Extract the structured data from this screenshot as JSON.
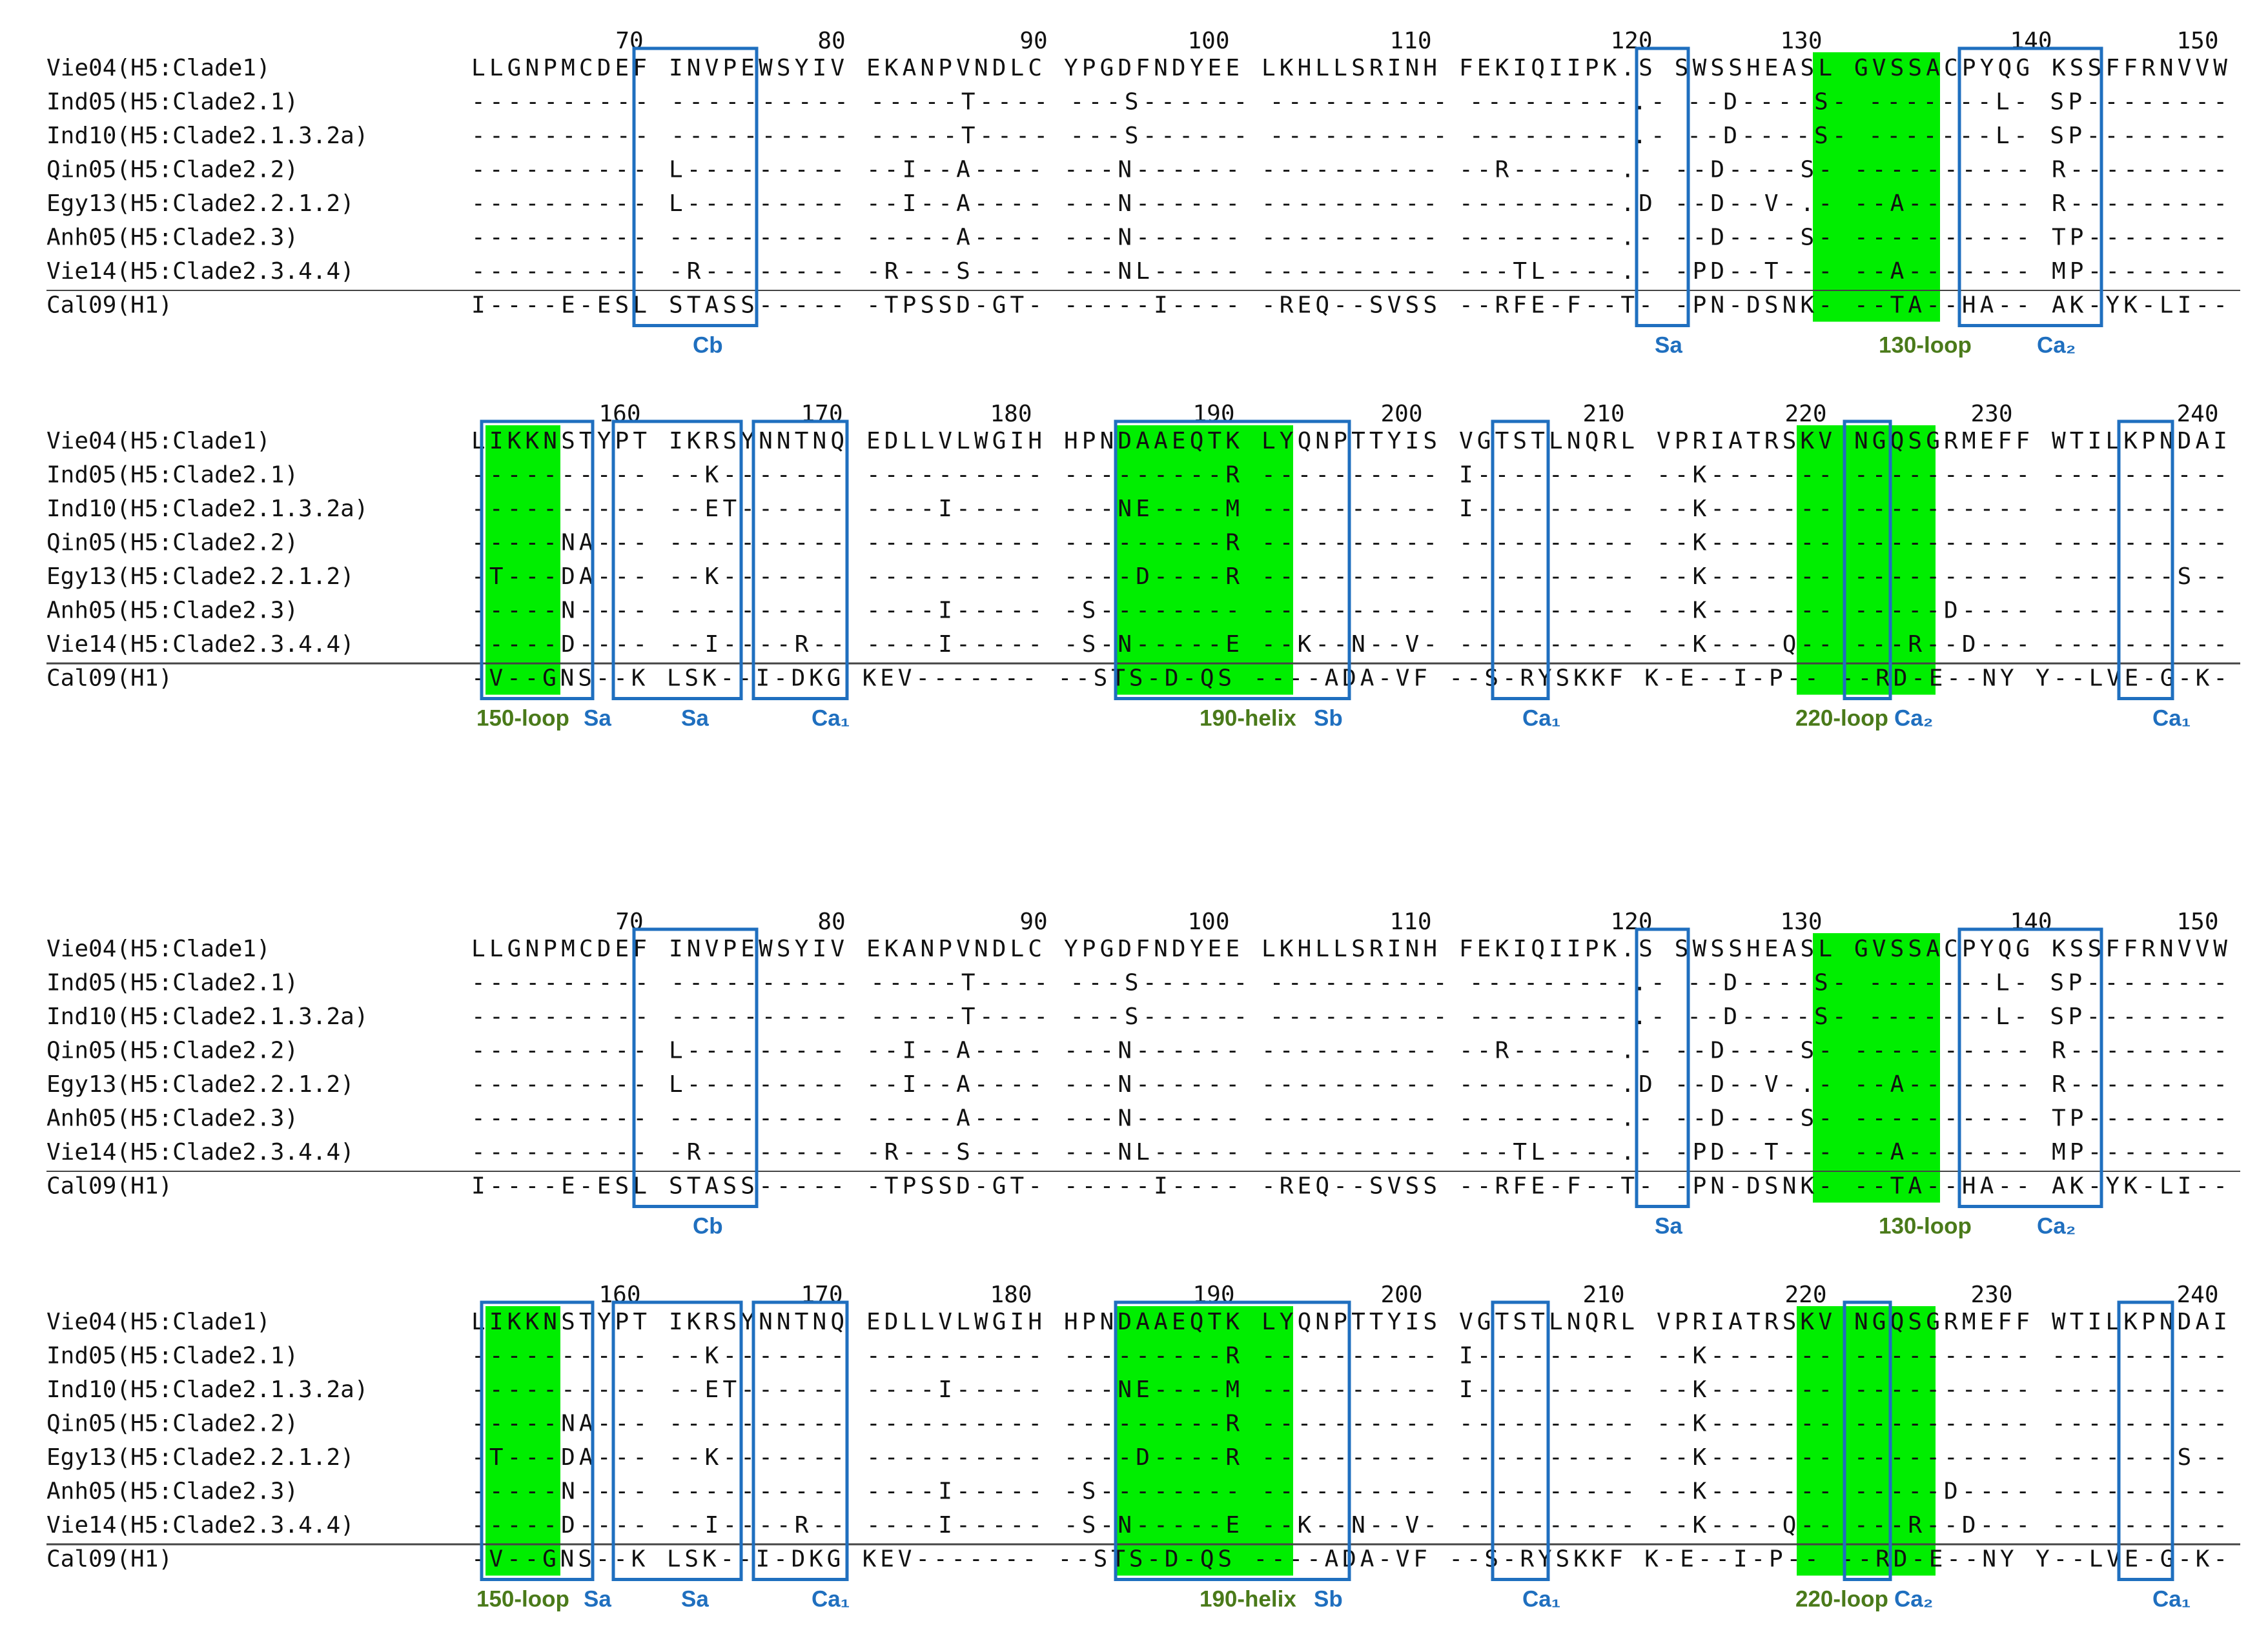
{
  "colors": {
    "highlight": "#00ee00",
    "box": "#1f6fbf",
    "site_label": "#1f6fbf",
    "loop_label": "#4a7a1a",
    "text": "#111111"
  },
  "panels": [
    {
      "ticks": [
        "70",
        "80",
        "90",
        "100",
        "110",
        "120",
        "130",
        "140",
        "150"
      ],
      "rows": [
        {
          "name": "Vie04(H5:Clade1)",
          "seq": "LLGNPMCDEF INVPEWSYIV EKANPVNDLC YPGDFNDYEE LKHLLSRINH FEKIQIIPK.S SWSSHEASL GVSSACPYQG KSSFFRNVVW"
        },
        {
          "name": "Ind05(H5:Clade2.1)",
          "seq": "---------- ---------- -----T---- ---S------ ---------- ---------.- --D----S- -------L- SP--------"
        },
        {
          "name": "Ind10(H5:Clade2.1.3.2a)",
          "seq": "---------- ---------- -----T---- ---S------ ---------- ---------.- --D----S- -------L- SP--------"
        },
        {
          "name": "Qin05(H5:Clade2.2)",
          "seq": "---------- L--------- --I--A---- ---N------ ---------- --R------.- --D----S- ---------- R---------"
        },
        {
          "name": "Egy13(H5:Clade2.2.1.2)",
          "seq": "---------- L--------- --I--A---- ---N------ ---------- ---------.D --D--V-.- --A------- R---------"
        },
        {
          "name": "Anh05(H5:Clade2.3)",
          "seq": "---------- ---------- -----A---- ---N------ ---------- ---------.- --D----S- ---------- TP--------"
        },
        {
          "name": "Vie14(H5:Clade2.3.4.4)",
          "seq": "---------- -R-------- -R---S---- ---NL----- ---------- ---TL----.- -PD--T--- --A------- MP--------"
        },
        {
          "name": "Cal09(H1)",
          "seq": "I----E-ESL STASS----- -TPSSD-GT- -----I---- -REQ--SVSS --RFE-F--T- -PN-DSNK- --TA--HA-- AK-YK-LI--"
        }
      ],
      "labels": [
        "Cb",
        "Sa",
        "130-loop",
        "Ca₂"
      ]
    },
    {
      "ticks": [
        "160",
        "170",
        "180",
        "190",
        "200",
        "210",
        "220",
        "230",
        "240"
      ],
      "rows": [
        {
          "name": "Vie04(H5:Clade1)",
          "seq": "LIKKNSTYPT IKRSYNNTNQ EDLLVLWGIH HPNDAAEQTK LYQNPTTYIS VGTSTLNQRL VPRIATRSKV NGQSGRMEFF WTILKPNDAI"
        },
        {
          "name": "Ind05(H5:Clade2.1)",
          "seq": "---------- --K------- ---------- ---------R ---------- I--------- --K------- ---------- ----------"
        },
        {
          "name": "Ind10(H5:Clade2.1.3.2a)",
          "seq": "---------- --ET------ ----I----- ---NE----M ---------- I--------- --K------- ---------- ----------"
        },
        {
          "name": "Qin05(H5:Clade2.2)",
          "seq": "-----NA--- ---------- ---------- ---------R ---------- ---------- --K------- ---------- ----------"
        },
        {
          "name": "Egy13(H5:Clade2.2.1.2)",
          "seq": "-T---DA--- --K------- ---------- ----D----R ---------- ---------- --K------- ---------- -------S--"
        },
        {
          "name": "Anh05(H5:Clade2.3)",
          "seq": "-----N---- ---------- ----I----- -S-------- ---------- ---------- --K------- -----D---- ----------"
        },
        {
          "name": "Vie14(H5:Clade2.3.4.4)",
          "seq": "-----D---- --I----R-- ----I----- -S-N-----E --K--N--V- ---------- --K----Q-- ---R--D--- ----------"
        },
        {
          "name": "Cal09(H1)",
          "seq": "-V--GNS--K LSK--I-DKG KEV------- --STS-D-QS ----ADA-VF --S-RYSKKF K-E--I-P-- --RD-E--NY Y--LVE-G-K-"
        }
      ],
      "labels": [
        "150-loop",
        "Sa",
        "Sa",
        "Ca₁",
        "190-helix",
        "Sb",
        "Ca₁",
        "220-loop",
        "Ca₂",
        "Ca₁"
      ]
    },
    {
      "ticks": [
        "70",
        "80",
        "90",
        "100",
        "110",
        "120",
        "130",
        "140",
        "150"
      ],
      "rows": [
        {
          "name": "Vie04(H5:Clade1)",
          "seq": "LLGNPMCDEF INVPEWSYIV EKANPVNDLC YPGDFNDYEE LKHLLSRINH FEKIQIIPK.S SWSSHEASL GVSSACPYQG KSSFFRNVVW"
        },
        {
          "name": "Ind05(H5:Clade2.1)",
          "seq": "---------- ---------- -----T---- ---S------ ---------- ---------.- --D----S- -------L- SP--------"
        },
        {
          "name": "Ind10(H5:Clade2.1.3.2a)",
          "seq": "---------- ---------- -----T---- ---S------ ---------- ---------.- --D----S- -------L- SP--------"
        },
        {
          "name": "Qin05(H5:Clade2.2)",
          "seq": "---------- L--------- --I--A---- ---N------ ---------- --R------.- --D----S- ---------- R---------"
        },
        {
          "name": "Egy13(H5:Clade2.2.1.2)",
          "seq": "---------- L--------- --I--A---- ---N------ ---------- ---------.D --D--V-.- --A------- R---------"
        },
        {
          "name": "Anh05(H5:Clade2.3)",
          "seq": "---------- ---------- -----A---- ---N------ ---------- ---------.- --D----S- ---------- TP--------"
        },
        {
          "name": "Vie14(H5:Clade2.3.4.4)",
          "seq": "---------- -R-------- -R---S---- ---NL----- ---------- ---TL----.- -PD--T--- --A------- MP--------"
        },
        {
          "name": "Cal09(H1)",
          "seq": "I----E-ESL STASS----- -TPSSD-GT- -----I---- -REQ--SVSS --RFE-F--T- -PN-DSNK- --TA--HA-- AK-YK-LI--"
        }
      ],
      "labels": [
        "Cb",
        "Sa",
        "130-loop",
        "Ca₂"
      ]
    },
    {
      "ticks": [
        "160",
        "170",
        "180",
        "190",
        "200",
        "210",
        "220",
        "230",
        "240"
      ],
      "rows": [
        {
          "name": "Vie04(H5:Clade1)",
          "seq": "LIKKNSTYPT IKRSYNNTNQ EDLLVLWGIH HPNDAAEQTK LYQNPTTYIS VGTSTLNQRL VPRIATRSKV NGQSGRMEFF WTILKPNDAI"
        },
        {
          "name": "Ind05(H5:Clade2.1)",
          "seq": "---------- --K------- ---------- ---------R ---------- I--------- --K------- ---------- ----------"
        },
        {
          "name": "Ind10(H5:Clade2.1.3.2a)",
          "seq": "---------- --ET------ ----I----- ---NE----M ---------- I--------- --K------- ---------- ----------"
        },
        {
          "name": "Qin05(H5:Clade2.2)",
          "seq": "-----NA--- ---------- ---------- ---------R ---------- ---------- --K------- ---------- ----------"
        },
        {
          "name": "Egy13(H5:Clade2.2.1.2)",
          "seq": "-T---DA--- --K------- ---------- ----D----R ---------- ---------- --K------- ---------- -------S--"
        },
        {
          "name": "Anh05(H5:Clade2.3)",
          "seq": "-----N---- ---------- ----I----- -S-------- ---------- ---------- --K------- -----D---- ----------"
        },
        {
          "name": "Vie14(H5:Clade2.3.4.4)",
          "seq": "-----D---- --I----R-- ----I----- -S-N-----E --K--N--V- ---------- --K----Q-- ---R--D--- ----------"
        },
        {
          "name": "Cal09(H1)",
          "seq": "-V--GNS--K LSK--I-DKG KEV------- --STS-D-QS ----ADA-VF --S-RYSKKF K-E--I-P-- --RD-E--NY Y--LVE-G-K-"
        }
      ],
      "labels": [
        "150-loop",
        "Sa",
        "Sa",
        "Ca₁",
        "190-helix",
        "Sb",
        "Ca₁",
        "220-loop",
        "Ca₂",
        "Ca₁"
      ]
    }
  ]
}
